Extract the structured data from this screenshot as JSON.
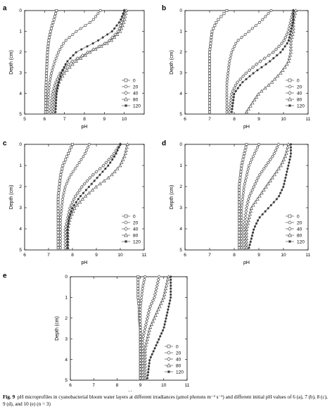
{
  "figure": {
    "caption_label": "Fig. 9",
    "caption_text": "pH microprofiles in cyanobacterial bloom water layers at different irradiances (μmol photons m⁻² s⁻¹) and different initial pH values of 6 (a), 7 (b), 8 (c), 9 (d), and 10 (e) (n = 3)"
  },
  "chart_data": [
    {
      "panel": "a",
      "type": "line",
      "xlabel": "pH",
      "ylabel": "Depth (cm)",
      "xlim": [
        5,
        11
      ],
      "ylim": [
        0,
        5
      ],
      "y_inverted": true,
      "xticks": [
        "5",
        "6",
        "7",
        "8",
        "9",
        "10"
      ],
      "yticks": [
        "0",
        "1",
        "2",
        "3",
        "4",
        "5"
      ],
      "legend_position": "lower-right",
      "series": [
        {
          "name": "0",
          "marker": "square",
          "x": [
            6.6,
            6.45,
            6.3,
            6.2,
            6.15,
            6.12,
            6.1,
            6.08,
            6.06,
            6.05
          ],
          "y": [
            0,
            0.5,
            1,
            1.5,
            2,
            2.5,
            3,
            3.5,
            4,
            4.9
          ]
        },
        {
          "name": "20",
          "marker": "circle",
          "x": [
            8.8,
            8.4,
            7.6,
            7.0,
            6.7,
            6.5,
            6.35,
            6.25,
            6.2,
            6.15
          ],
          "y": [
            0,
            0.5,
            1,
            1.5,
            2,
            2.5,
            3,
            3.5,
            4,
            4.9
          ]
        },
        {
          "name": "40",
          "marker": "diamond",
          "x": [
            10.0,
            9.9,
            9.7,
            9.2,
            8.2,
            7.3,
            6.8,
            6.55,
            6.4,
            6.3
          ],
          "y": [
            0,
            0.5,
            1,
            1.5,
            2,
            2.5,
            3,
            3.5,
            4,
            4.9
          ]
        },
        {
          "name": "80",
          "marker": "triangle",
          "x": [
            10.1,
            10.0,
            9.8,
            9.3,
            8.3,
            7.5,
            7.0,
            6.7,
            6.55,
            6.45
          ],
          "y": [
            0,
            0.5,
            1,
            1.5,
            2,
            2.5,
            3,
            3.5,
            4,
            4.9
          ]
        },
        {
          "name": "120",
          "marker": "star",
          "x": [
            10.0,
            9.8,
            9.4,
            8.6,
            7.6,
            7.1,
            6.85,
            6.7,
            6.6,
            6.55
          ],
          "y": [
            0,
            0.5,
            1,
            1.5,
            2,
            2.5,
            3,
            3.5,
            4,
            4.9
          ]
        }
      ]
    },
    {
      "panel": "b",
      "type": "line",
      "xlabel": "pH",
      "ylabel": "Depth (cm)",
      "xlim": [
        6,
        11
      ],
      "ylim": [
        0,
        5
      ],
      "y_inverted": true,
      "xticks": [
        "6",
        "7",
        "8",
        "9",
        "10",
        "11"
      ],
      "yticks": [
        "0",
        "1",
        "2",
        "3",
        "4",
        "5"
      ],
      "legend_position": "lower-right",
      "series": [
        {
          "name": "0",
          "marker": "square",
          "x": [
            7.7,
            7.3,
            7.1,
            7.05,
            7.0,
            7.0,
            7.0,
            7.0,
            7.0,
            7.0
          ],
          "y": [
            0,
            0.5,
            1,
            1.5,
            2,
            2.5,
            3,
            3.5,
            4,
            4.9
          ]
        },
        {
          "name": "20",
          "marker": "circle",
          "x": [
            9.5,
            9.1,
            8.6,
            8.1,
            7.9,
            7.8,
            7.75,
            7.7,
            7.7,
            7.7
          ],
          "y": [
            0,
            0.5,
            1,
            1.5,
            2,
            2.5,
            3,
            3.5,
            4,
            4.9
          ]
        },
        {
          "name": "40",
          "marker": "diamond",
          "x": [
            10.4,
            10.3,
            10.2,
            10.0,
            9.6,
            9.0,
            8.5,
            8.1,
            7.9,
            7.8
          ],
          "y": [
            0,
            0.5,
            1,
            1.5,
            2,
            2.5,
            3,
            3.5,
            4,
            4.9
          ]
        },
        {
          "name": "80",
          "marker": "triangle",
          "x": [
            10.5,
            10.4,
            10.4,
            10.3,
            10.3,
            10.2,
            9.9,
            9.5,
            9.0,
            8.5
          ],
          "y": [
            0,
            0.5,
            1,
            1.5,
            2,
            2.5,
            3,
            3.5,
            4,
            4.9
          ]
        },
        {
          "name": "120",
          "marker": "star",
          "x": [
            10.4,
            10.4,
            10.3,
            10.2,
            9.9,
            9.4,
            8.8,
            8.3,
            8.0,
            7.9
          ],
          "y": [
            0,
            0.5,
            1,
            1.5,
            2,
            2.5,
            3,
            3.5,
            4,
            4.9
          ]
        }
      ]
    },
    {
      "panel": "c",
      "type": "line",
      "xlabel": "pH",
      "ylabel": "Depth (cm)",
      "xlim": [
        6,
        11
      ],
      "ylim": [
        0,
        5
      ],
      "y_inverted": true,
      "xticks": [
        "6",
        "7",
        "8",
        "9",
        "10",
        "11"
      ],
      "yticks": [
        "0",
        "1",
        "2",
        "3",
        "4",
        "5"
      ],
      "legend_position": "lower-right",
      "series": [
        {
          "name": "0",
          "marker": "square",
          "x": [
            8.0,
            7.8,
            7.6,
            7.5,
            7.45,
            7.4,
            7.4,
            7.4,
            7.4,
            7.4
          ],
          "y": [
            0,
            0.5,
            1,
            1.5,
            2,
            2.5,
            3,
            3.5,
            4,
            4.9
          ]
        },
        {
          "name": "20",
          "marker": "circle",
          "x": [
            8.7,
            8.5,
            8.2,
            7.9,
            7.7,
            7.6,
            7.55,
            7.5,
            7.5,
            7.5
          ],
          "y": [
            0,
            0.5,
            1,
            1.5,
            2,
            2.5,
            3,
            3.5,
            4,
            4.9
          ]
        },
        {
          "name": "40",
          "marker": "diamond",
          "x": [
            10.0,
            9.7,
            9.3,
            8.8,
            8.4,
            8.1,
            7.9,
            7.8,
            7.7,
            7.7
          ],
          "y": [
            0,
            0.5,
            1,
            1.5,
            2,
            2.5,
            3,
            3.5,
            4,
            4.9
          ]
        },
        {
          "name": "80",
          "marker": "triangle",
          "x": [
            10.3,
            10.2,
            10.0,
            9.6,
            9.0,
            8.5,
            8.1,
            7.9,
            7.8,
            7.8
          ],
          "y": [
            0,
            0.5,
            1,
            1.5,
            2,
            2.5,
            3,
            3.5,
            4,
            4.9
          ]
        },
        {
          "name": "120",
          "marker": "star",
          "x": [
            10.0,
            9.8,
            9.5,
            9.1,
            8.7,
            8.3,
            8.0,
            7.85,
            7.8,
            7.8
          ],
          "y": [
            0,
            0.5,
            1,
            1.5,
            2,
            2.5,
            3,
            3.5,
            4,
            4.9
          ]
        }
      ]
    },
    {
      "panel": "d",
      "type": "line",
      "xlabel": "pH",
      "ylabel": "Depth (cm)",
      "xlim": [
        6,
        11
      ],
      "ylim": [
        0,
        5
      ],
      "y_inverted": true,
      "xticks": [
        "6",
        "7",
        "8",
        "9",
        "10",
        "11"
      ],
      "yticks": [
        "0",
        "1",
        "2",
        "3",
        "4",
        "5"
      ],
      "legend_position": "lower-right",
      "series": [
        {
          "name": "0",
          "marker": "square",
          "x": [
            8.5,
            8.4,
            8.3,
            8.25,
            8.2,
            8.2,
            8.2,
            8.2,
            8.2,
            8.2
          ],
          "y": [
            0,
            0.5,
            1,
            1.5,
            2,
            2.5,
            3,
            3.5,
            4,
            4.9
          ]
        },
        {
          "name": "20",
          "marker": "circle",
          "x": [
            9.0,
            8.8,
            8.6,
            8.5,
            8.4,
            8.35,
            8.3,
            8.3,
            8.3,
            8.3
          ],
          "y": [
            0,
            0.5,
            1,
            1.5,
            2,
            2.5,
            3,
            3.5,
            4,
            4.9
          ]
        },
        {
          "name": "40",
          "marker": "diamond",
          "x": [
            9.8,
            9.6,
            9.3,
            9.0,
            8.8,
            8.6,
            8.5,
            8.45,
            8.4,
            8.4
          ],
          "y": [
            0,
            0.5,
            1,
            1.5,
            2,
            2.5,
            3,
            3.5,
            4,
            4.9
          ]
        },
        {
          "name": "80",
          "marker": "triangle",
          "x": [
            10.2,
            10.1,
            9.9,
            9.6,
            9.3,
            9.0,
            8.7,
            8.6,
            8.5,
            8.5
          ],
          "y": [
            0,
            0.5,
            1,
            1.5,
            2,
            2.5,
            3,
            3.5,
            4,
            4.9
          ]
        },
        {
          "name": "120",
          "marker": "star",
          "x": [
            10.3,
            10.3,
            10.2,
            10.1,
            10.0,
            9.8,
            9.4,
            9.0,
            8.8,
            8.6
          ],
          "y": [
            0,
            0.5,
            1,
            1.5,
            2,
            2.5,
            3,
            3.5,
            4,
            4.9
          ]
        }
      ]
    },
    {
      "panel": "e",
      "type": "line",
      "xlabel": "pH",
      "ylabel": "Depth (cm)",
      "xlim": [
        6,
        11
      ],
      "ylim": [
        0,
        5
      ],
      "y_inverted": true,
      "xticks": [
        "6",
        "7",
        "8",
        "9",
        "10",
        "11"
      ],
      "yticks": [
        "0",
        "1",
        "2",
        "3",
        "4",
        "5"
      ],
      "legend_position": "lower-right",
      "series": [
        {
          "name": "0",
          "marker": "square",
          "x": [
            8.9,
            8.9,
            8.9,
            8.95,
            8.95,
            9.0,
            9.0,
            9.0,
            9.0,
            9.0
          ],
          "y": [
            0,
            0.5,
            1,
            1.5,
            2,
            2.5,
            3,
            3.5,
            4,
            4.9
          ]
        },
        {
          "name": "20",
          "marker": "circle",
          "x": [
            9.2,
            9.1,
            9.05,
            9.0,
            9.0,
            9.0,
            9.0,
            9.0,
            9.0,
            9.0
          ],
          "y": [
            0,
            0.5,
            1,
            1.5,
            2,
            2.5,
            3,
            3.5,
            4,
            4.9
          ]
        },
        {
          "name": "40",
          "marker": "diamond",
          "x": [
            9.8,
            9.7,
            9.6,
            9.4,
            9.3,
            9.2,
            9.1,
            9.1,
            9.1,
            9.1
          ],
          "y": [
            0,
            0.5,
            1,
            1.5,
            2,
            2.5,
            3,
            3.5,
            4,
            4.9
          ]
        },
        {
          "name": "80",
          "marker": "triangle",
          "x": [
            10.2,
            10.1,
            10.0,
            9.8,
            9.6,
            9.4,
            9.3,
            9.2,
            9.2,
            9.2
          ],
          "y": [
            0,
            0.5,
            1,
            1.5,
            2,
            2.5,
            3,
            3.5,
            4,
            4.9
          ]
        },
        {
          "name": "120",
          "marker": "star",
          "x": [
            10.3,
            10.3,
            10.3,
            10.2,
            10.1,
            10.0,
            9.8,
            9.6,
            9.4,
            9.3
          ],
          "y": [
            0,
            0.5,
            1,
            1.5,
            2,
            2.5,
            3,
            3.5,
            4,
            4.9
          ]
        }
      ]
    }
  ]
}
